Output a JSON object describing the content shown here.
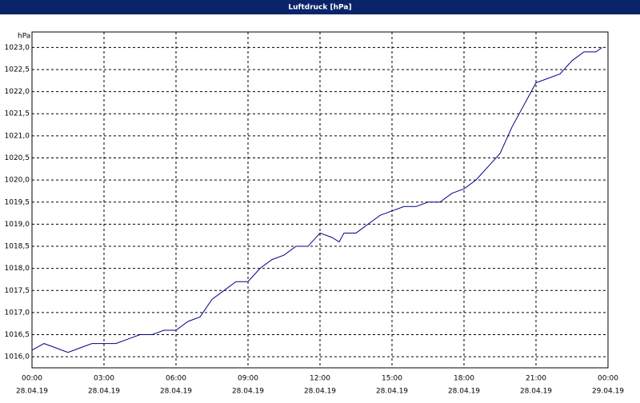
{
  "chart_data": {
    "type": "line",
    "title": "Luftdruck [hPa]",
    "y_unit": "hPa",
    "x": [
      0,
      0.5,
      1,
      1.5,
      2,
      2.5,
      3,
      3.5,
      4,
      4.5,
      5,
      5.5,
      6,
      6.5,
      7,
      7.5,
      8,
      8.5,
      9,
      9.5,
      10,
      10.5,
      11,
      11.5,
      12,
      12.5,
      12.8,
      13,
      13.5,
      14,
      14.5,
      15,
      15.5,
      16,
      16.5,
      17,
      17.5,
      18,
      18.5,
      19,
      19.5,
      20,
      20.5,
      21,
      21.5,
      22,
      22.5,
      23,
      23.5,
      23.75
    ],
    "series": [
      {
        "name": "Luftdruck",
        "color": "#00008b",
        "values": [
          1016.15,
          1016.3,
          1016.2,
          1016.1,
          1016.2,
          1016.3,
          1016.3,
          1016.3,
          1016.4,
          1016.5,
          1016.5,
          1016.6,
          1016.6,
          1016.8,
          1016.9,
          1017.3,
          1017.5,
          1017.7,
          1017.7,
          1018.0,
          1018.2,
          1018.3,
          1018.5,
          1018.5,
          1018.8,
          1018.7,
          1018.6,
          1018.8,
          1018.8,
          1019.0,
          1019.2,
          1019.3,
          1019.4,
          1019.4,
          1019.5,
          1019.5,
          1019.7,
          1019.8,
          1020.0,
          1020.3,
          1020.6,
          1021.2,
          1021.7,
          1022.2,
          1022.3,
          1022.4,
          1022.7,
          1022.9,
          1022.9,
          1023.0
        ]
      }
    ],
    "xlim": [
      0,
      24
    ],
    "xticks": [
      {
        "value": 0,
        "label": [
          "00:00",
          "28.04.19"
        ]
      },
      {
        "value": 3,
        "label": [
          "03:00",
          "28.04.19"
        ]
      },
      {
        "value": 6,
        "label": [
          "06:00",
          "28.04.19"
        ]
      },
      {
        "value": 9,
        "label": [
          "09:00",
          "28.04.19"
        ]
      },
      {
        "value": 12,
        "label": [
          "12:00",
          "28.04.19"
        ]
      },
      {
        "value": 15,
        "label": [
          "15:00",
          "28.04.19"
        ]
      },
      {
        "value": 18,
        "label": [
          "18:00",
          "28.04.19"
        ]
      },
      {
        "value": 21,
        "label": [
          "21:00",
          "28.04.19"
        ]
      },
      {
        "value": 24,
        "label": [
          "00:00",
          "29.04.19"
        ]
      }
    ],
    "ylim": [
      1015.75,
      1023.35
    ],
    "yticks": [
      {
        "value": 1016,
        "label": "1016,0"
      },
      {
        "value": 1016.5,
        "label": "1016,5"
      },
      {
        "value": 1017,
        "label": "1017,0"
      },
      {
        "value": 1017.5,
        "label": "1017,5"
      },
      {
        "value": 1018,
        "label": "1018,0"
      },
      {
        "value": 1018.5,
        "label": "1018,5"
      },
      {
        "value": 1019,
        "label": "1019,0"
      },
      {
        "value": 1019.5,
        "label": "1019,5"
      },
      {
        "value": 1020,
        "label": "1020,0"
      },
      {
        "value": 1020.5,
        "label": "1020,5"
      },
      {
        "value": 1021,
        "label": "1021,0"
      },
      {
        "value": 1021.5,
        "label": "1021,5"
      },
      {
        "value": 1022,
        "label": "1022,0"
      },
      {
        "value": 1022.5,
        "label": "1022,5"
      },
      {
        "value": 1023,
        "label": "1023,0"
      }
    ],
    "grid": true
  }
}
